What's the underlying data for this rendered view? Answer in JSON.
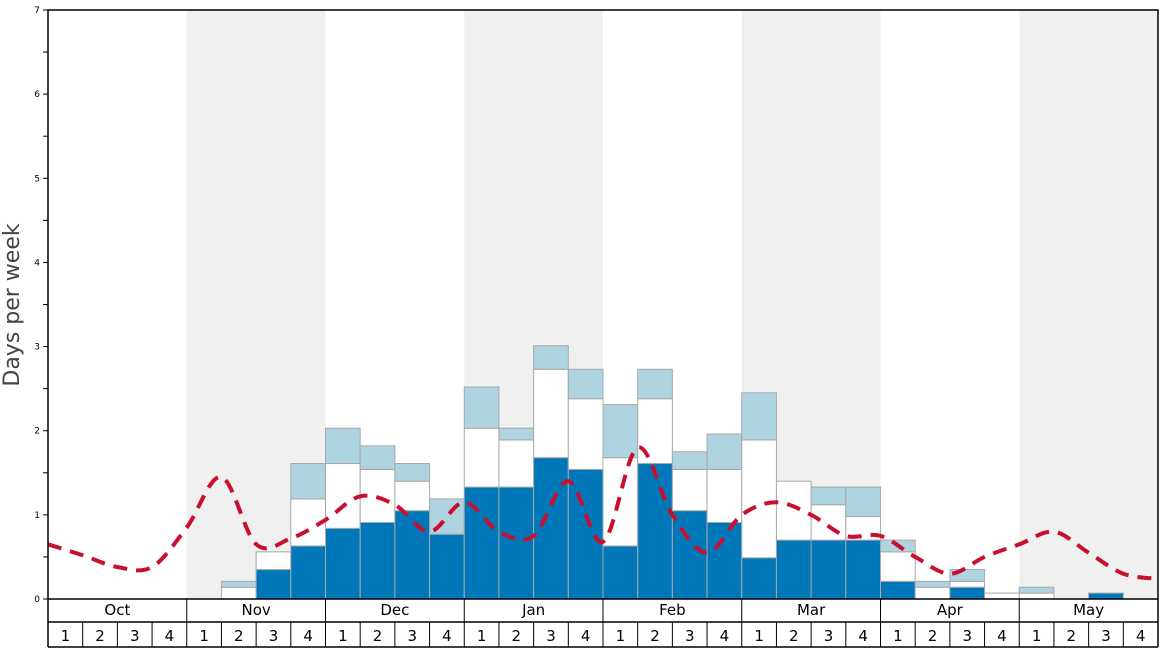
{
  "chart_data": {
    "type": "bar",
    "title": "",
    "ylabel": "Days per week",
    "ylim": [
      0,
      7
    ],
    "yticks": [
      0,
      1,
      2,
      3,
      4,
      5,
      6,
      7
    ],
    "months": [
      "Oct",
      "Nov",
      "Dec",
      "Jan",
      "Feb",
      "Mar",
      "Apr",
      "May"
    ],
    "week_labels": [
      "1",
      "2",
      "3",
      "4"
    ],
    "colors": {
      "dark": "#0077b8",
      "mid": "#ffffff",
      "light": "#add4e0",
      "line": "#c8102e",
      "shade": "#f0f0f0"
    },
    "series": [
      {
        "key": "dark",
        "values": [
          0,
          0,
          0,
          0,
          0,
          0,
          0.35,
          0.63,
          0.84,
          0.91,
          1.05,
          0.77,
          1.33,
          1.33,
          1.68,
          1.54,
          0.63,
          1.61,
          1.05,
          0.91,
          0.49,
          0.7,
          0.7,
          0.7,
          0.21,
          0,
          0.14,
          0,
          0,
          0,
          0.07,
          0
        ]
      },
      {
        "key": "mid",
        "values": [
          0,
          0,
          0,
          0,
          0,
          0.14,
          0.21,
          0.56,
          0.77,
          0.63,
          0.35,
          0,
          0.7,
          0.56,
          1.05,
          0.84,
          1.05,
          0.77,
          0.49,
          0.63,
          1.4,
          0.7,
          0.42,
          0.28,
          0.35,
          0.14,
          0.07,
          0.07,
          0.07,
          0,
          0,
          0
        ]
      },
      {
        "key": "light",
        "values": [
          0,
          0,
          0,
          0,
          0,
          0.07,
          0,
          0.42,
          0.42,
          0.28,
          0.21,
          0.42,
          0.49,
          0.14,
          0.28,
          0.35,
          0.63,
          0.35,
          0.21,
          0.42,
          0.56,
          0,
          0.21,
          0.35,
          0.14,
          0.07,
          0.14,
          0,
          0.07,
          0,
          0,
          0
        ]
      }
    ],
    "average_line": [
      0.65,
      0.52,
      0.38,
      0.38,
      0.85,
      1.45,
      0.65,
      0.72,
      0.94,
      1.22,
      1.12,
      0.8,
      1.15,
      0.8,
      0.75,
      1.4,
      0.68,
      1.8,
      1.0,
      0.55,
      1.0,
      1.15,
      1.0,
      0.75,
      0.75,
      0.5,
      0.3,
      0.5,
      0.65,
      0.8,
      0.55,
      0.3,
      0.24
    ]
  }
}
